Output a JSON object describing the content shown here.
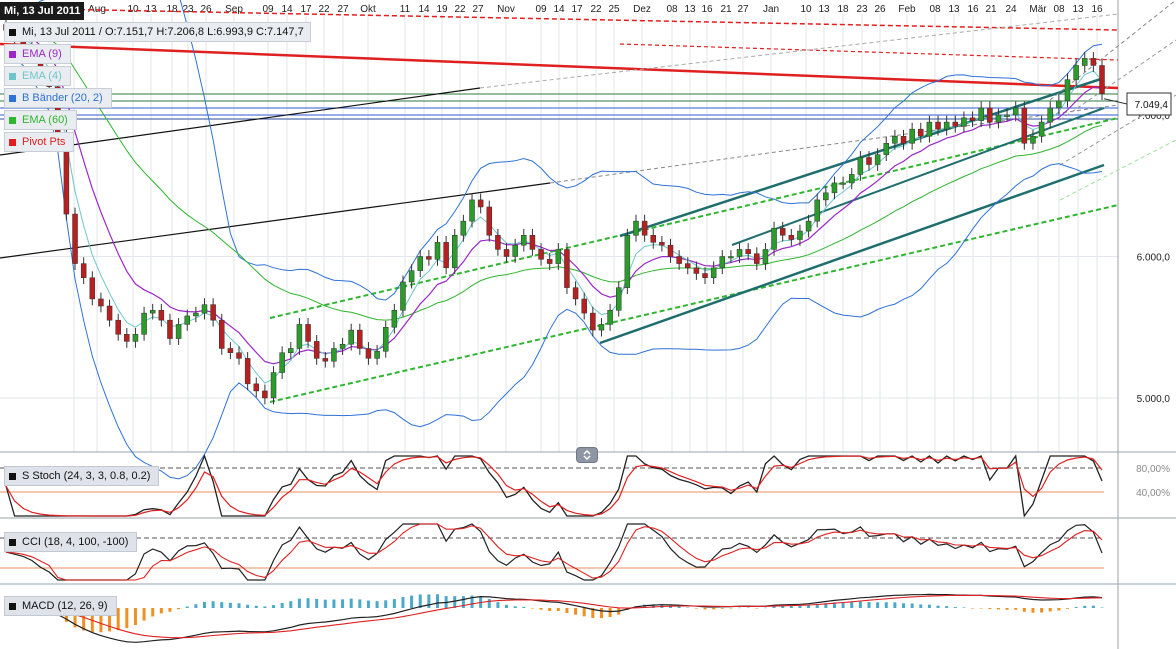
{
  "header": {
    "date_badge": "Mi, 13 Jul 2011",
    "ohlc_info": "Mi, 13 Jul 2011 / O:7.151,7  H:7.206,8  L:6.993,9  C:7.147,7"
  },
  "legend": [
    {
      "label": "EMA (9)",
      "color": "#9b27c9"
    },
    {
      "label": "EMA (4)",
      "color": "#6fc6c9"
    },
    {
      "label": "B Bänder (20, 2)",
      "color": "#2e72d6"
    },
    {
      "label": "EMA (60)",
      "color": "#2fb52f"
    },
    {
      "label": "Pivot Pts",
      "color": "#e02020"
    }
  ],
  "indicators": {
    "stoch_label": "S Stoch (24, 3, 3, 0.8, 0.2)",
    "cci_label": "CCI (18, 4, 100, -100)",
    "macd_label": "MACD (12, 26, 9)"
  },
  "price_tag": "7.049,4",
  "chart_data": {
    "type": "candlestick",
    "title": "",
    "x_axis_labels": [
      "7",
      "Aug",
      "10",
      "13",
      "18",
      "23",
      "26",
      "Sep",
      "09",
      "14",
      "17",
      "22",
      "27",
      "Okt",
      "11",
      "14",
      "19",
      "22",
      "27",
      "Nov",
      "09",
      "14",
      "17",
      "22",
      "25",
      "Dez",
      "08",
      "13",
      "16",
      "21",
      "27",
      "Jan",
      "10",
      "13",
      "18",
      "23",
      "26",
      "Feb",
      "08",
      "13",
      "16",
      "21",
      "24",
      "Mär",
      "08",
      "13",
      "16"
    ],
    "y_axis": {
      "ticks": [
        5000,
        6000,
        7000
      ],
      "tick_labels": [
        "5.000,0",
        "6.000,0",
        "7.000,0"
      ],
      "range": [
        4800,
        7650
      ]
    },
    "stoch_axis_labels": [
      "80,00%",
      "40,00%"
    ],
    "series": [
      {
        "name": "Kurs",
        "close": [
          7600,
          7550,
          7500,
          7420,
          7300,
          7200,
          6850,
          6300,
          5950,
          5850,
          5700,
          5650,
          5550,
          5450,
          5400,
          5450,
          5600,
          5620,
          5550,
          5420,
          5520,
          5580,
          5600,
          5660,
          5550,
          5350,
          5320,
          5280,
          5100,
          5050,
          5000,
          5180,
          5320,
          5350,
          5520,
          5400,
          5280,
          5260,
          5350,
          5380,
          5480,
          5350,
          5280,
          5330,
          5500,
          5620,
          5820,
          5900,
          6000,
          5980,
          6100,
          5920,
          6150,
          6250,
          6400,
          6350,
          6150,
          6050,
          6000,
          6080,
          6150,
          6050,
          5980,
          5950,
          6050,
          5780,
          5700,
          5600,
          5480,
          5520,
          5620,
          5780,
          6150,
          6250,
          6150,
          6100,
          6080,
          6000,
          5950,
          5920,
          5880,
          5850,
          5920,
          6000,
          6000,
          6050,
          6020,
          5950,
          6050,
          6200,
          6150,
          6120,
          6180,
          6250,
          6400,
          6450,
          6520,
          6520,
          6580,
          6700,
          6650,
          6720,
          6800,
          6850,
          6800,
          6900,
          6850,
          6950,
          6900,
          6950,
          6920,
          6980,
          6960,
          7050,
          6950,
          7000,
          7000,
          7050,
          6800,
          6850,
          6950,
          7050,
          7100,
          7250,
          7350,
          7400,
          7350,
          7150
        ]
      }
    ]
  }
}
